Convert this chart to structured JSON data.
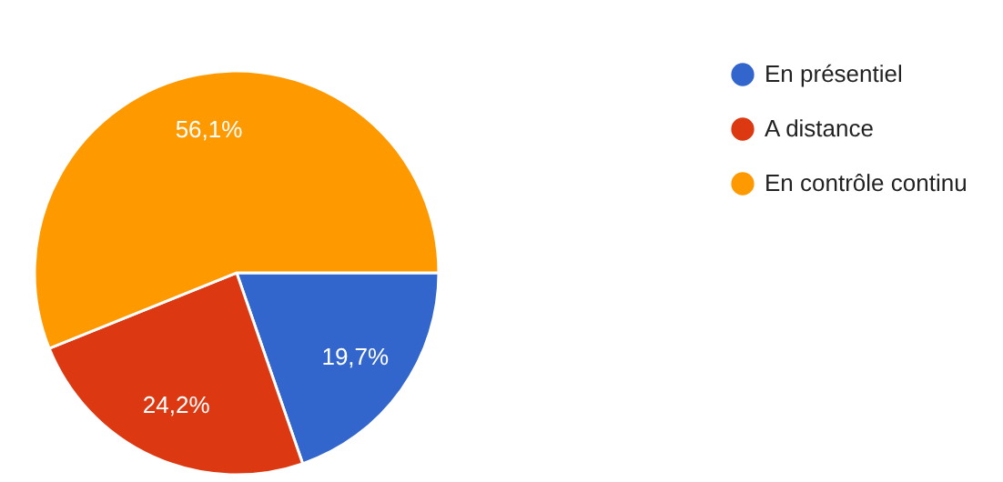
{
  "chart_data": {
    "type": "pie",
    "categories": [
      "En présentiel",
      "A distance",
      "En contrôle continu"
    ],
    "values": [
      19.7,
      24.2,
      56.1
    ],
    "colors": [
      "#3366cc",
      "#dc3912",
      "#ff9900"
    ],
    "value_labels": [
      "19,7%",
      "24,2%",
      "56,1%"
    ],
    "legend": "top right"
  }
}
